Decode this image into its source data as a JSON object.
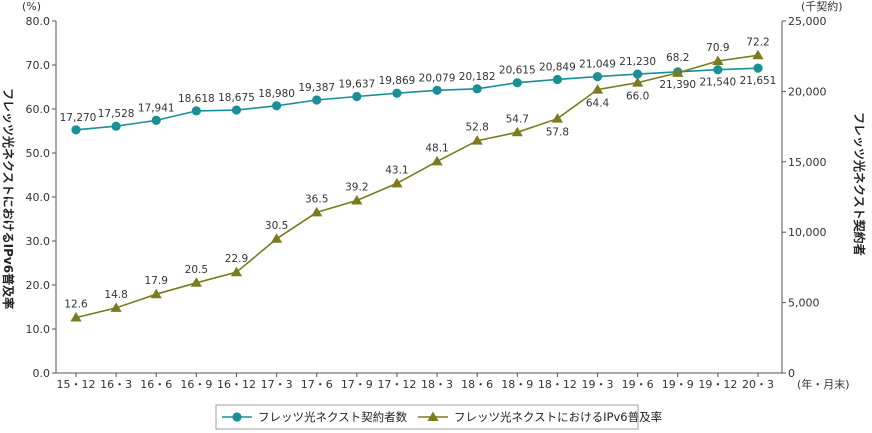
{
  "chart_data": {
    "type": "line",
    "categories": [
      "15・12",
      "16・3",
      "16・6",
      "16・9",
      "16・12",
      "17・3",
      "17・6",
      "17・9",
      "17・12",
      "18・3",
      "18・6",
      "18・9",
      "18・12",
      "19・3",
      "19・6",
      "19・9",
      "19・12",
      "20・3"
    ],
    "x_unit": "(年・月末)",
    "y_left": {
      "unit": "(%)",
      "label": "フレッツ光ネクストにおけるIPv6普及率",
      "ylim": [
        0,
        80
      ],
      "ticks": [
        "0.0",
        "10.0",
        "20.0",
        "30.0",
        "40.0",
        "50.0",
        "60.0",
        "70.0",
        "80.0"
      ]
    },
    "y_right": {
      "unit": "(千契約)",
      "label": "フレッツ光ネクスト契約者",
      "ylim": [
        0,
        25000
      ],
      "ticks": [
        "0",
        "5,000",
        "10,000",
        "15,000",
        "20,000",
        "25,000"
      ]
    },
    "series": [
      {
        "name": "フレッツ光ネクスト契約者数",
        "axis": "right",
        "marker": "circle",
        "color": "#1a8f98",
        "values": [
          17270,
          17528,
          17941,
          18618,
          18675,
          18980,
          19387,
          19637,
          19869,
          20079,
          20182,
          20615,
          20849,
          21049,
          21230,
          21390,
          21540,
          21651
        ],
        "labels": [
          "17,270",
          "17,528",
          "17,941",
          "18,618",
          "18,675",
          "18,980",
          "19,387",
          "19,637",
          "19,869",
          "20,079",
          "20,182",
          "20,615",
          "20,849",
          "21,049",
          "21,230",
          "21,390",
          "21,540",
          "21,651"
        ]
      },
      {
        "name": "フレッツ光ネクストにおけるIPv6普及率",
        "axis": "left",
        "marker": "triangle",
        "color": "#7a7a1e",
        "values": [
          12.6,
          14.8,
          17.9,
          20.5,
          22.9,
          30.5,
          36.5,
          39.2,
          43.1,
          48.1,
          52.8,
          54.7,
          57.8,
          64.4,
          66.0,
          68.2,
          70.9,
          72.2
        ],
        "labels": [
          "12.6",
          "14.8",
          "17.9",
          "20.5",
          "22.9",
          "30.5",
          "36.5",
          "39.2",
          "43.1",
          "48.1",
          "52.8",
          "54.7",
          "57.8",
          "64.4",
          "66.0",
          "68.2",
          "70.9",
          "72.2"
        ]
      }
    ],
    "grid": false,
    "legend_position": "bottom"
  }
}
